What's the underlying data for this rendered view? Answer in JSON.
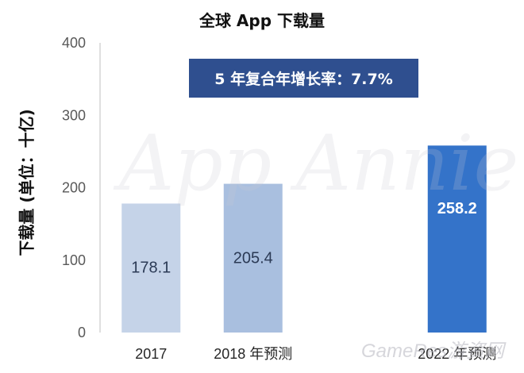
{
  "chart_data": {
    "type": "bar",
    "title": "全球 App 下载量",
    "xlabel": "",
    "ylabel": "下载量 (单位：十亿)",
    "ylim": [
      0,
      400
    ],
    "yticks": [
      "0",
      "100",
      "200",
      "300",
      "400"
    ],
    "categories": [
      "2017",
      "2018 年预测",
      "",
      "2022 年预测"
    ],
    "values": [
      178.1,
      205.4,
      null,
      258.2
    ],
    "value_labels": [
      "178.1",
      "205.4",
      "",
      "258.2"
    ],
    "bar_colors": [
      "#c5d3e8",
      "#a9bfdf",
      "",
      "#3473c9"
    ],
    "label_colors": [
      "#2b3a55",
      "#2b3a55",
      "",
      "#ffffff"
    ],
    "annotation": "5 年复合年增长率：7.7%",
    "annotation_color": "#2f4f8f",
    "grid": false
  },
  "watermarks": {
    "main": "App Annie",
    "corner": "GameRes游资网"
  }
}
